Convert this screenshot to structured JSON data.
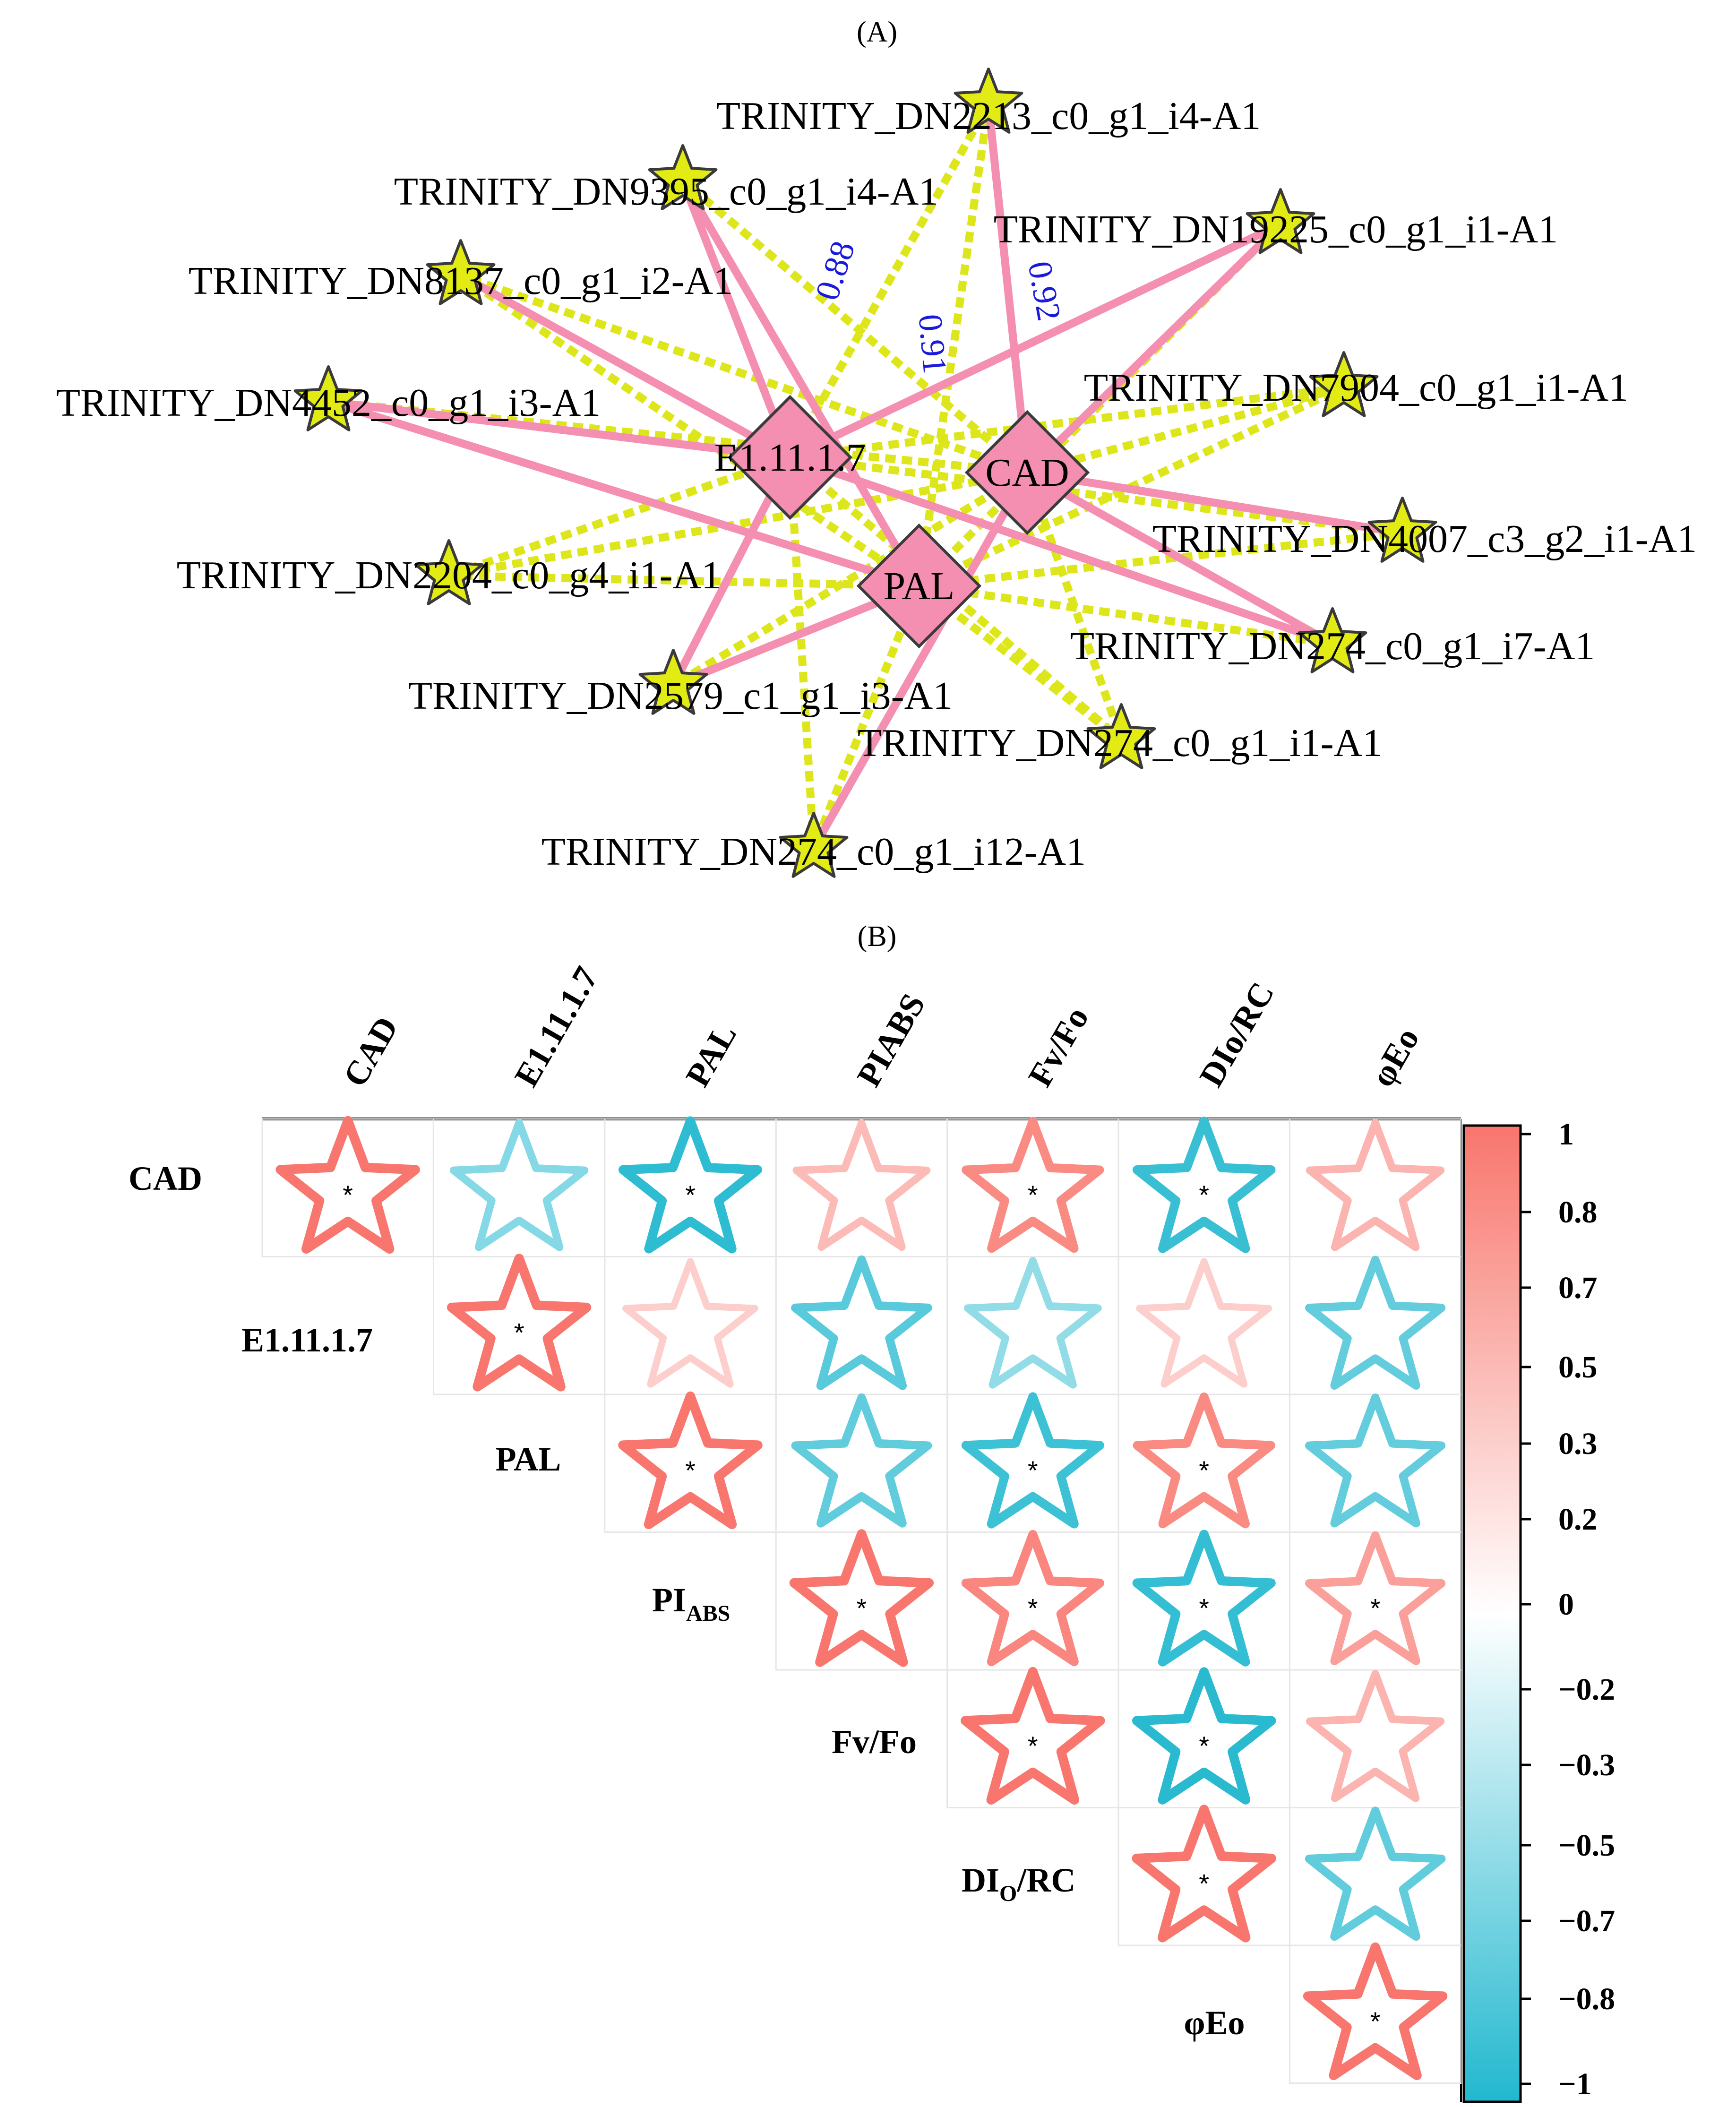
{
  "panel_a": {
    "title": "(A)",
    "hubs": [
      {
        "id": "E1",
        "label": "E1.11.1.7"
      },
      {
        "id": "CAD",
        "label": "CAD"
      },
      {
        "id": "PAL",
        "label": "PAL"
      }
    ],
    "genes": [
      {
        "id": "g2213",
        "label": "TRINITY_DN2213_c0_g1_i4-A1"
      },
      {
        "id": "g9395",
        "label": "TRINITY_DN9395_c0_g1_i4-A1"
      },
      {
        "id": "g19225",
        "label": "TRINITY_DN19225_c0_g1_i1-A1"
      },
      {
        "id": "g8137",
        "label": "TRINITY_DN8137_c0_g1_i2-A1"
      },
      {
        "id": "g4452",
        "label": "TRINITY_DN4452_c0_g1_i3-A1"
      },
      {
        "id": "g7904",
        "label": "TRINITY_DN7904_c0_g1_i1-A1"
      },
      {
        "id": "g4007",
        "label": "TRINITY_DN4007_c3_g2_i1-A1"
      },
      {
        "id": "g2204",
        "label": "TRINITY_DN2204_c0_g4_i1-A1"
      },
      {
        "id": "g274i7",
        "label": "TRINITY_DN274_c0_g1_i7-A1"
      },
      {
        "id": "g2579",
        "label": "TRINITY_DN2579_c1_g1_i3-A1"
      },
      {
        "id": "g274i1",
        "label": "TRINITY_DN274_c0_g1_i1-A1"
      },
      {
        "id": "g274i12",
        "label": "TRINITY_DN274_c0_g1_i12-A1"
      }
    ],
    "edge_labels": [
      {
        "from": "E1",
        "to": "g2213",
        "value": "0.88"
      },
      {
        "from": "PAL",
        "to": "g2213",
        "value": "0.91"
      },
      {
        "from": "CAD",
        "to": "g2213",
        "value": "0.92"
      }
    ],
    "colors": {
      "positive_edge": "#f48fb1",
      "negative_edge": "#dde61a",
      "gene_node": "#e2ec14",
      "hub_node": "#f48fb1",
      "weight_label": "#1a1adb"
    }
  },
  "panel_b": {
    "title": "(B)",
    "variables": [
      "CAD",
      "E1.11.1.7",
      "PAL",
      "PIABS",
      "Fv/Fo",
      "DIo/RC",
      "φEo"
    ],
    "row_labels": [
      {
        "main": "CAD",
        "sub": ""
      },
      {
        "main": "E1.11.1.7",
        "sub": ""
      },
      {
        "main": "PAL",
        "sub": ""
      },
      {
        "main": "PI",
        "sub": "ABS"
      },
      {
        "main": "Fv/Fo",
        "sub": ""
      },
      {
        "main": "DI",
        "sub": "O",
        "tail": "/RC"
      },
      {
        "main": "φEo",
        "sub": ""
      }
    ],
    "significance_marker": "*",
    "colorbar_ticks": [
      "1",
      "0.8",
      "0.7",
      "0.5",
      "0.3",
      "0.2",
      "0",
      "−0.2",
      "−0.3",
      "−0.5",
      "−0.7",
      "−0.8",
      "−1"
    ],
    "colors": {
      "positive": "#f8766d",
      "negative": "#22b8cf",
      "neutral": "#ffffff"
    },
    "chart_data": {
      "type": "heatmap",
      "title": "",
      "rows": [
        "CAD",
        "E1.11.1.7",
        "PAL",
        "PIABS",
        "Fv/Fo",
        "DIo/RC",
        "φEo"
      ],
      "columns": [
        "CAD",
        "E1.11.1.7",
        "PAL",
        "PIABS",
        "Fv/Fo",
        "DIo/RC",
        "φEo"
      ],
      "range": [
        -1,
        1
      ],
      "cells": [
        {
          "row": 0,
          "col": 0,
          "value": 1.0,
          "significant": true
        },
        {
          "row": 0,
          "col": 1,
          "value": -0.55,
          "significant": false
        },
        {
          "row": 0,
          "col": 2,
          "value": -0.95,
          "significant": true
        },
        {
          "row": 0,
          "col": 3,
          "value": 0.5,
          "significant": false
        },
        {
          "row": 0,
          "col": 4,
          "value": 0.85,
          "significant": true
        },
        {
          "row": 0,
          "col": 5,
          "value": -0.9,
          "significant": true
        },
        {
          "row": 0,
          "col": 6,
          "value": 0.55,
          "significant": false
        },
        {
          "row": 1,
          "col": 1,
          "value": 1.0,
          "significant": true
        },
        {
          "row": 1,
          "col": 2,
          "value": 0.35,
          "significant": false
        },
        {
          "row": 1,
          "col": 3,
          "value": -0.75,
          "significant": false
        },
        {
          "row": 1,
          "col": 4,
          "value": -0.5,
          "significant": false
        },
        {
          "row": 1,
          "col": 5,
          "value": 0.35,
          "significant": false
        },
        {
          "row": 1,
          "col": 6,
          "value": -0.7,
          "significant": false
        },
        {
          "row": 2,
          "col": 2,
          "value": 1.0,
          "significant": true
        },
        {
          "row": 2,
          "col": 3,
          "value": -0.72,
          "significant": false
        },
        {
          "row": 2,
          "col": 4,
          "value": -0.88,
          "significant": true
        },
        {
          "row": 2,
          "col": 5,
          "value": 0.85,
          "significant": true
        },
        {
          "row": 2,
          "col": 6,
          "value": -0.7,
          "significant": false
        },
        {
          "row": 3,
          "col": 3,
          "value": 1.0,
          "significant": true
        },
        {
          "row": 3,
          "col": 4,
          "value": 0.88,
          "significant": true
        },
        {
          "row": 3,
          "col": 5,
          "value": -0.92,
          "significant": true
        },
        {
          "row": 3,
          "col": 6,
          "value": 0.7,
          "significant": true
        },
        {
          "row": 4,
          "col": 4,
          "value": 1.0,
          "significant": true
        },
        {
          "row": 4,
          "col": 5,
          "value": -0.97,
          "significant": true
        },
        {
          "row": 4,
          "col": 6,
          "value": 0.55,
          "significant": false
        },
        {
          "row": 5,
          "col": 5,
          "value": 1.0,
          "significant": true
        },
        {
          "row": 5,
          "col": 6,
          "value": -0.72,
          "significant": false
        },
        {
          "row": 6,
          "col": 6,
          "value": 1.0,
          "significant": true
        }
      ]
    }
  }
}
